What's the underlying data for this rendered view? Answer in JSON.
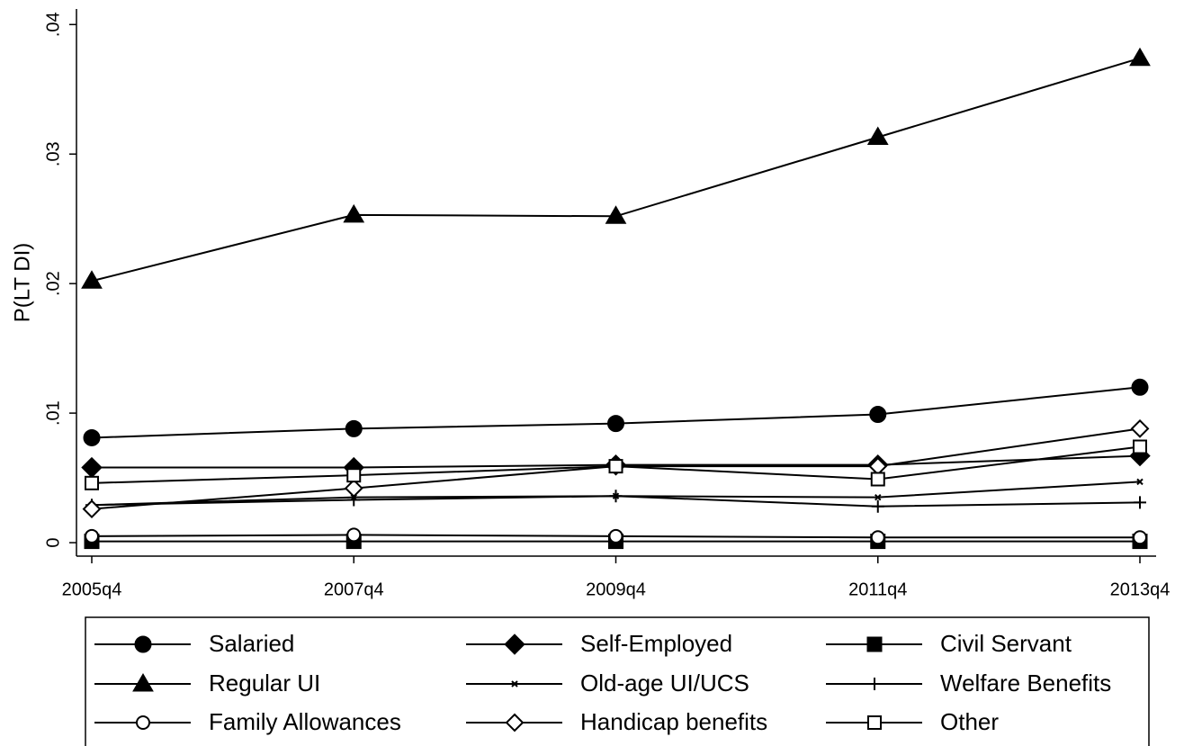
{
  "chart_data": {
    "type": "line",
    "y_label": "P(LT DI)",
    "categories": [
      "2005q4",
      "2007q4",
      "2009q4",
      "2011q4",
      "2013q4"
    ],
    "ylim": [
      -0.00104,
      0.0412
    ],
    "yticks": [
      0,
      {
        "value": 0.01,
        "label": ".01"
      },
      {
        "value": 0.02,
        "label": ".02"
      },
      {
        "value": 0.03,
        "label": ".03"
      },
      {
        "value": 0.04,
        "label": ".04"
      }
    ],
    "series": [
      {
        "name": "Salaried",
        "color": "#000000",
        "marker": "circle",
        "values": [
          0.0081,
          0.0088,
          0.0092,
          0.0099,
          0.012
        ]
      },
      {
        "name": "Self-Employed",
        "color": "#000000",
        "marker": "diamond",
        "values": [
          0.0058,
          0.0058,
          0.006,
          0.006,
          0.0067
        ]
      },
      {
        "name": "Civil Servant",
        "color": "#000000",
        "marker": "square",
        "values": [
          0.0001,
          0.0001,
          0.0001,
          0.0001,
          0.0001
        ]
      },
      {
        "name": "Regular UI",
        "color": "#000000",
        "marker": "triangle",
        "values": [
          0.0202,
          0.0253,
          0.0252,
          0.0313,
          0.0374
        ]
      },
      {
        "name": "Old-age UI/UCS",
        "color": "#000000",
        "marker": "x",
        "values": [
          0.0029,
          0.0035,
          0.0036,
          0.0035,
          0.0047
        ]
      },
      {
        "name": "Welfare Benefits",
        "color": "#000000",
        "marker": "plus",
        "values": [
          0.0029,
          0.0033,
          0.0036,
          0.0028,
          0.0031
        ]
      },
      {
        "name": "Family Allowances",
        "color": "#000000",
        "marker": "hollow-circle",
        "values": [
          0.0005,
          0.0006,
          0.0005,
          0.0004,
          0.0004
        ]
      },
      {
        "name": "Handicap benefits",
        "color": "#000000",
        "marker": "hollow-diamond",
        "values": [
          0.0026,
          0.0042,
          0.0059,
          0.0059,
          0.0088
        ]
      },
      {
        "name": "Other",
        "color": "#000000",
        "marker": "hollow-square",
        "values": [
          0.0046,
          0.0052,
          0.0059,
          0.0049,
          0.0074
        ]
      }
    ]
  }
}
